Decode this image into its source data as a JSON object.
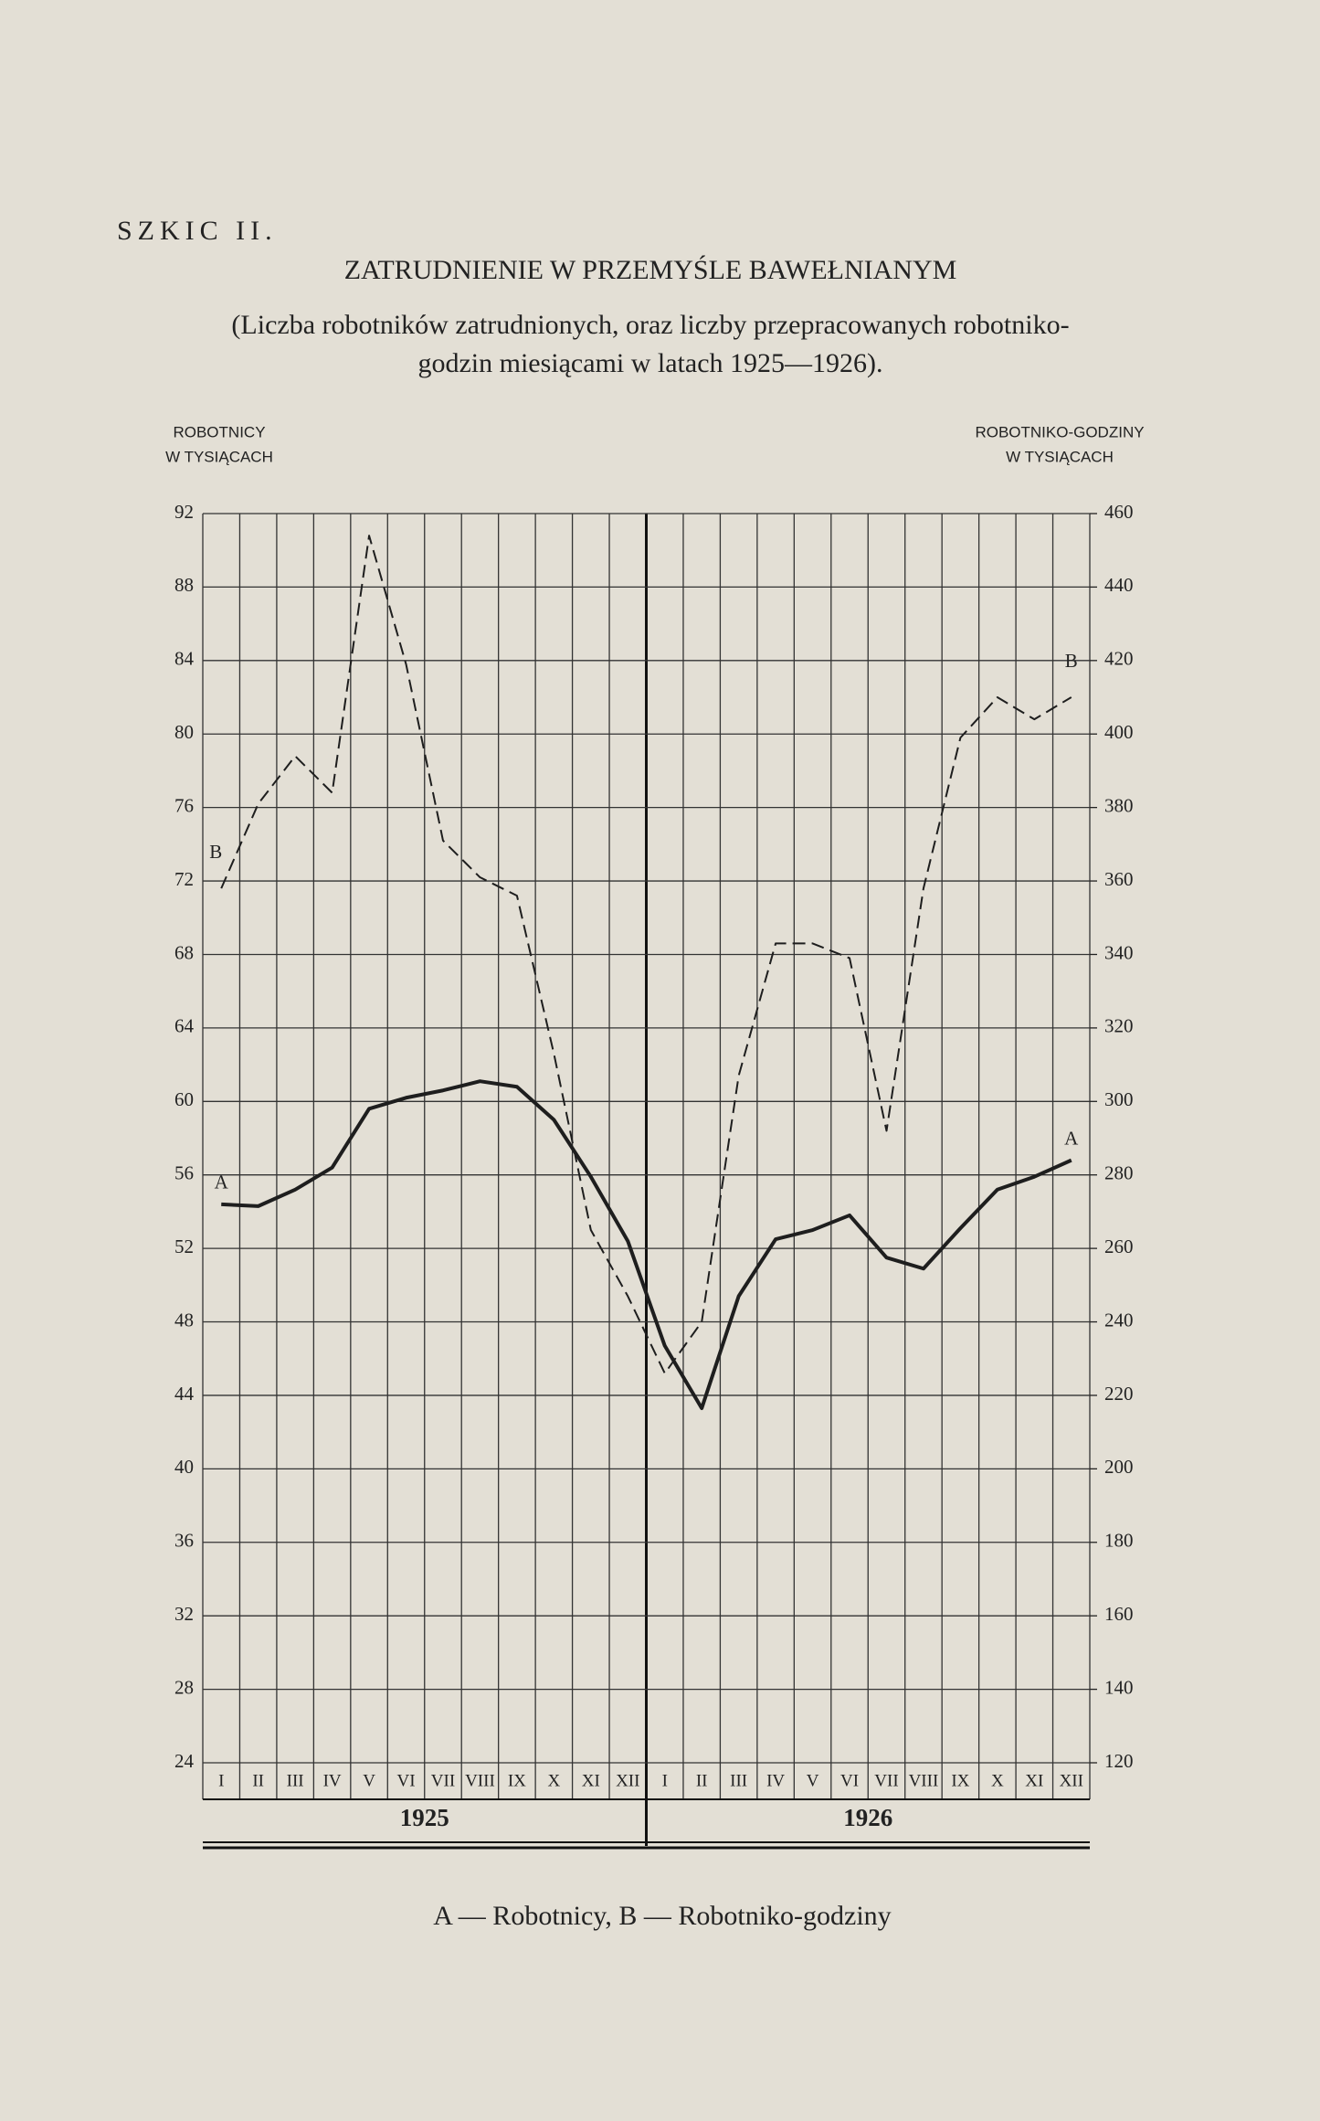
{
  "chart_data": {
    "type": "line",
    "sketch": "SZKIC II.",
    "title": "ZATRUDNIENIE W PRZEMYŚLE BAWEŁNIANYM",
    "subtitle": [
      "(Liczba robotników zatrudnionych, oraz liczby przepracowanych robotniko-",
      "godzin miesiącami w latach 1925—1926)."
    ],
    "y_label": [
      "ROBOTNICY",
      "W TYSIĄCACH"
    ],
    "y2_label": [
      "ROBOTNIKO-GODZINY",
      "W TYSIĄCACH"
    ],
    "caption": "A — Robotnicy, B — Robotniko-godziny",
    "categories": [
      "I",
      "II",
      "III",
      "IV",
      "V",
      "VI",
      "VII",
      "VIII",
      "IX",
      "X",
      "XI",
      "XII",
      "I",
      "II",
      "III",
      "IV",
      "V",
      "VI",
      "VII",
      "VIII",
      "IX",
      "X",
      "XI",
      "XII"
    ],
    "years": [
      "1925",
      "1926"
    ],
    "ylim": [
      24,
      92
    ],
    "yticks": [
      24,
      28,
      32,
      36,
      40,
      44,
      48,
      52,
      56,
      60,
      64,
      68,
      72,
      76,
      80,
      84,
      88,
      92
    ],
    "y2lim": [
      120,
      460
    ],
    "y2ticks": [
      120,
      140,
      160,
      180,
      200,
      220,
      240,
      260,
      280,
      300,
      320,
      340,
      360,
      380,
      400,
      420,
      440,
      460
    ],
    "grid": true,
    "series": [
      {
        "name": "A",
        "color": "#1e1e1e",
        "dashed": false,
        "values": [
          54.4,
          54.3,
          55.2,
          56.4,
          59.6,
          60.2,
          60.6,
          61.1,
          60.8,
          59.0,
          55.9,
          52.4,
          46.7,
          43.3,
          49.4,
          52.5,
          53.0,
          53.8,
          51.5,
          50.9,
          53.1,
          55.2,
          55.9,
          56.8
        ]
      },
      {
        "name": "B",
        "color": "#1e1e1e",
        "dashed": true,
        "axis": "y2",
        "values": [
          358,
          381,
          394,
          384,
          454,
          419,
          371,
          361,
          356,
          313,
          265,
          247,
          226,
          240,
          307,
          343,
          343,
          339,
          292,
          358,
          399,
          410,
          404,
          410
        ]
      }
    ]
  }
}
